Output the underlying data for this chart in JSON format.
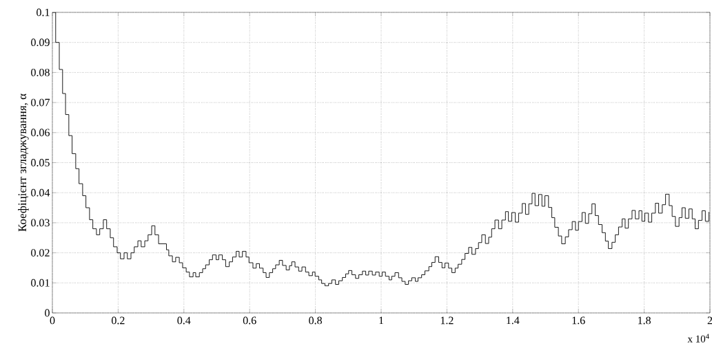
{
  "chart_data": {
    "type": "step",
    "ylabel": "Коефіцієнт згладжування, α",
    "annotations": [
      "x 10$^{4}$"
    ],
    "color": "#000000",
    "grid": true,
    "xlim": [
      0,
      2
    ],
    "ylim": [
      0,
      0.1
    ],
    "xticks": [
      0,
      0.2,
      0.4,
      0.6,
      0.8,
      1,
      1.2,
      1.4,
      1.6,
      1.8,
      2
    ],
    "yticks": [
      0,
      0.01,
      0.02,
      0.03,
      0.04,
      0.05,
      0.06,
      0.07,
      0.08,
      0.09,
      0.1
    ],
    "x": [
      0,
      0.01,
      0.021,
      0.031,
      0.04,
      0.05,
      0.06,
      0.071,
      0.081,
      0.092,
      0.102,
      0.113,
      0.123,
      0.134,
      0.144,
      0.155,
      0.165,
      0.176,
      0.186,
      0.197,
      0.207,
      0.218,
      0.228,
      0.239,
      0.249,
      0.26,
      0.27,
      0.281,
      0.291,
      0.302,
      0.312,
      0.323,
      0.347,
      0.354,
      0.365,
      0.375,
      0.386,
      0.396,
      0.407,
      0.417,
      0.428,
      0.436,
      0.447,
      0.457,
      0.466,
      0.477,
      0.487,
      0.498,
      0.506,
      0.517,
      0.527,
      0.538,
      0.548,
      0.559,
      0.568,
      0.578,
      0.589,
      0.598,
      0.61,
      0.62,
      0.63,
      0.641,
      0.65,
      0.66,
      0.67,
      0.679,
      0.69,
      0.7,
      0.711,
      0.721,
      0.728,
      0.738,
      0.749,
      0.759,
      0.77,
      0.78,
      0.791,
      0.799,
      0.81,
      0.819,
      0.829,
      0.84,
      0.85,
      0.861,
      0.871,
      0.882,
      0.892,
      0.901,
      0.911,
      0.922,
      0.932,
      0.943,
      0.953,
      0.962,
      0.973,
      0.983,
      0.994,
      1.003,
      1.013,
      1.024,
      1.032,
      1.042,
      1.053,
      1.063,
      1.073,
      1.083,
      1.093,
      1.104,
      1.112,
      1.123,
      1.133,
      1.145,
      1.154,
      1.164,
      1.175,
      1.185,
      1.194,
      1.205,
      1.215,
      1.225,
      1.234,
      1.245,
      1.255,
      1.266,
      1.276,
      1.287,
      1.296,
      1.306,
      1.317,
      1.327,
      1.336,
      1.346,
      1.357,
      1.367,
      1.378,
      1.387,
      1.397,
      1.408,
      1.418,
      1.429,
      1.439,
      1.449,
      1.459,
      1.468,
      1.479,
      1.489,
      1.498,
      1.509,
      1.519,
      1.528,
      1.539,
      1.549,
      1.56,
      1.57,
      1.581,
      1.591,
      1.6,
      1.611,
      1.621,
      1.631,
      1.641,
      1.651,
      1.661,
      1.672,
      1.682,
      1.691,
      1.702,
      1.712,
      1.722,
      1.733,
      1.742,
      1.752,
      1.763,
      1.773,
      1.784,
      1.793,
      1.802,
      1.813,
      1.823,
      1.834,
      1.844,
      1.855,
      1.865,
      1.876,
      1.885,
      1.895,
      1.906,
      1.915,
      1.925,
      1.936,
      1.946,
      1.955,
      1.965,
      1.976,
      1.986,
      1.997
    ],
    "values": [
      0.1,
      0.09,
      0.081,
      0.073,
      0.066,
      0.059,
      0.053,
      0.048,
      0.043,
      0.039,
      0.035,
      0.031,
      0.028,
      0.026,
      0.028,
      0.031,
      0.028,
      0.025,
      0.022,
      0.02,
      0.018,
      0.02,
      0.018,
      0.02,
      0.022,
      0.024,
      0.022,
      0.024,
      0.026,
      0.029,
      0.026,
      0.023,
      0.021,
      0.019,
      0.017,
      0.0185,
      0.0167,
      0.015,
      0.0136,
      0.012,
      0.0134,
      0.012,
      0.0134,
      0.0147,
      0.016,
      0.0177,
      0.0193,
      0.0177,
      0.0193,
      0.0177,
      0.0154,
      0.017,
      0.0186,
      0.0205,
      0.0186,
      0.0205,
      0.0186,
      0.0167,
      0.0149,
      0.0164,
      0.0149,
      0.0134,
      0.0118,
      0.0134,
      0.0147,
      0.016,
      0.0175,
      0.0158,
      0.0143,
      0.0157,
      0.017,
      0.0153,
      0.0139,
      0.0153,
      0.0136,
      0.0124,
      0.0136,
      0.0122,
      0.011,
      0.0098,
      0.009,
      0.0098,
      0.011,
      0.0095,
      0.0107,
      0.0118,
      0.013,
      0.0141,
      0.0127,
      0.0115,
      0.0127,
      0.0139,
      0.0126,
      0.0139,
      0.0126,
      0.0136,
      0.0122,
      0.0136,
      0.0122,
      0.011,
      0.0122,
      0.0134,
      0.0117,
      0.0105,
      0.0095,
      0.0107,
      0.0117,
      0.0105,
      0.0117,
      0.0127,
      0.014,
      0.0154,
      0.0168,
      0.0187,
      0.0168,
      0.015,
      0.0166,
      0.0149,
      0.0134,
      0.0149,
      0.0162,
      0.0178,
      0.0198,
      0.0218,
      0.0195,
      0.0214,
      0.0234,
      0.026,
      0.0231,
      0.0252,
      0.028,
      0.0309,
      0.028,
      0.0309,
      0.0337,
      0.0305,
      0.0334,
      0.0302,
      0.0332,
      0.0364,
      0.0328,
      0.0363,
      0.0398,
      0.0357,
      0.0394,
      0.0355,
      0.039,
      0.0351,
      0.0317,
      0.0285,
      0.0256,
      0.023,
      0.0253,
      0.0277,
      0.0304,
      0.0275,
      0.0304,
      0.0334,
      0.0298,
      0.033,
      0.0363,
      0.0324,
      0.0294,
      0.0267,
      0.0239,
      0.0214,
      0.0235,
      0.026,
      0.0286,
      0.0313,
      0.0282,
      0.0313,
      0.0341,
      0.0313,
      0.034,
      0.0305,
      0.0332,
      0.0302,
      0.0332,
      0.0365,
      0.0332,
      0.036,
      0.0395,
      0.0357,
      0.0321,
      0.0288,
      0.0317,
      0.035,
      0.0315,
      0.0346,
      0.0313,
      0.028,
      0.0308,
      0.034,
      0.0305,
      0.0336
    ]
  }
}
